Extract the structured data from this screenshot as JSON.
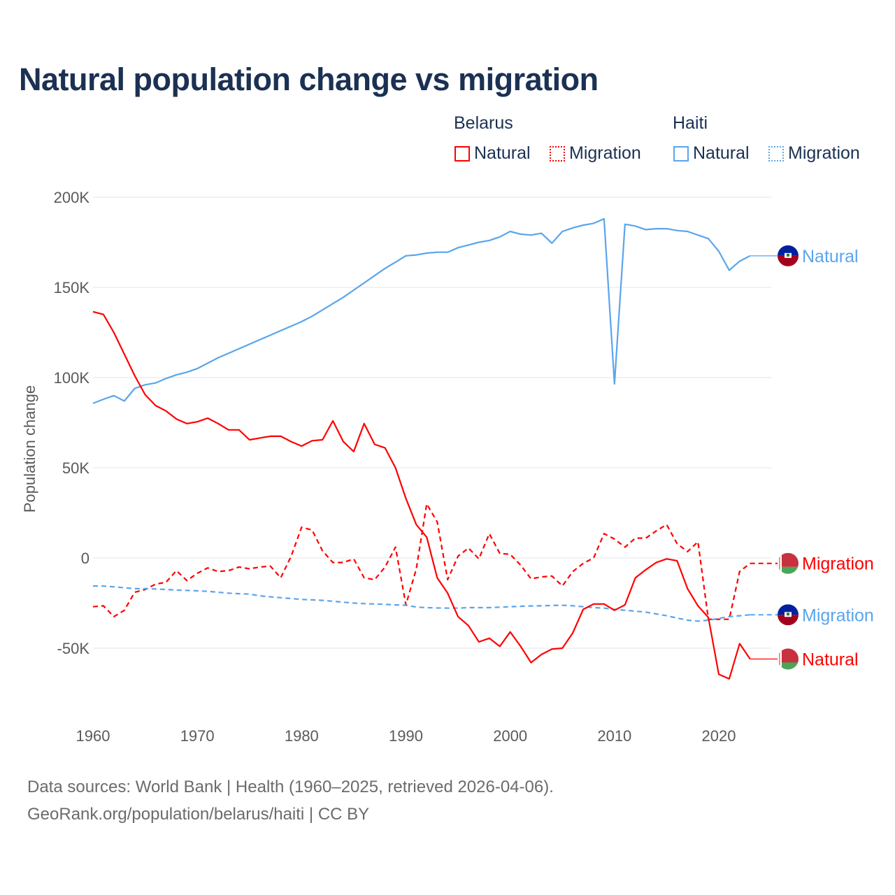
{
  "title": "Natural population change vs migration",
  "legend": {
    "groups": [
      {
        "name": "Belarus",
        "items": [
          {
            "label": "Natural",
            "style": "solid"
          },
          {
            "label": "Migration",
            "style": "dashed"
          }
        ],
        "color": "#ff0000"
      },
      {
        "name": "Haiti",
        "items": [
          {
            "label": "Natural",
            "style": "solid"
          },
          {
            "label": "Migration",
            "style": "dashed"
          }
        ],
        "color": "#5aa5ec"
      }
    ]
  },
  "footer": {
    "line1": "Data sources: World Bank | Health (1960–2025, retrieved 2026-04-06).",
    "line2": "GeoRank.org/population/belarus/haiti | CC BY"
  },
  "chart_data": {
    "type": "line",
    "title": "Natural population change vs migration",
    "xlabel": "",
    "ylabel": "Population change",
    "value_unit": "thousands",
    "xlim": [
      1960,
      2025
    ],
    "ylim": [
      -80,
      200
    ],
    "yticks": [
      -50,
      0,
      50,
      100,
      150,
      200
    ],
    "ytick_labels": [
      "-50K",
      "0",
      "50K",
      "100K",
      "150K",
      "200K"
    ],
    "xticks": [
      1960,
      1970,
      1980,
      1990,
      2000,
      2010,
      2020
    ],
    "xtick_labels": [
      "1960",
      "1970",
      "1980",
      "1990",
      "2000",
      "2010",
      "2020"
    ],
    "grid": true,
    "legend_position": "top-right",
    "x_start": 1960,
    "series": [
      {
        "name": "Haiti Natural",
        "end_label": "Natural",
        "country": "Haiti",
        "color": "#5aa5ec",
        "dash": false,
        "values": [
          85.7,
          88,
          90,
          87,
          94,
          96,
          97,
          99.5,
          101.5,
          103,
          105,
          108,
          111,
          113.5,
          116,
          118.5,
          121,
          123.5,
          126,
          128.5,
          131,
          134,
          137.5,
          141,
          144.5,
          148.5,
          152.5,
          156.5,
          160.5,
          164,
          167.5,
          168,
          169,
          169.5,
          169.5,
          172,
          173.5,
          175,
          176,
          178,
          181,
          179.5,
          179,
          180,
          174.5,
          181,
          183,
          184.5,
          185.5,
          188,
          96.5,
          185,
          184,
          182,
          182.5,
          182.5,
          181.5,
          181,
          179,
          177,
          170,
          159.5,
          164.5,
          167.5
        ]
      },
      {
        "name": "Belarus Migration",
        "end_label": "Migration",
        "country": "Belarus",
        "color": "#ff0000",
        "dash": true,
        "values": [
          -27,
          -26.5,
          -32.5,
          -29,
          -19,
          -17.5,
          -14.5,
          -13.5,
          -7,
          -12.5,
          -8.5,
          -5.5,
          -7.5,
          -7,
          -5,
          -6,
          -5,
          -4.5,
          -11,
          1,
          17,
          15.5,
          4,
          -2.5,
          -2.5,
          -0.5,
          -11,
          -12,
          -5,
          6,
          -26,
          -6,
          30,
          20,
          -12,
          1,
          5.5,
          -0.5,
          13.5,
          2.5,
          2,
          -4,
          -11.5,
          -10.5,
          -10,
          -15.5,
          -7.5,
          -3,
          0,
          13.5,
          10.5,
          6,
          11,
          11,
          15,
          18.5,
          8,
          3.5,
          9,
          -34,
          -34,
          -34,
          -7.5,
          -3
        ]
      },
      {
        "name": "Haiti Migration",
        "end_label": "Migration",
        "country": "Haiti",
        "color": "#5aa5ec",
        "dash": true,
        "values": [
          -15.5,
          -15.6,
          -16,
          -16.5,
          -17,
          -17,
          -17.2,
          -17.5,
          -17.8,
          -18,
          -18.2,
          -18.5,
          -19,
          -19.5,
          -19.8,
          -20,
          -21,
          -21.5,
          -22,
          -22.5,
          -23,
          -23.2,
          -23.5,
          -24,
          -24.5,
          -25,
          -25.3,
          -25.5,
          -25.7,
          -26,
          -26.2,
          -27.2,
          -27.5,
          -27.7,
          -27.8,
          -27.8,
          -27.5,
          -27.5,
          -27.5,
          -27.3,
          -27,
          -26.8,
          -26.6,
          -26.5,
          -26.3,
          -26.2,
          -26.5,
          -27,
          -27.5,
          -27.8,
          -28.5,
          -29,
          -29.5,
          -30,
          -31,
          -32,
          -33.3,
          -34.5,
          -35,
          -34.5,
          -33.5,
          -32.5,
          -32,
          -31.5
        ]
      },
      {
        "name": "Belarus Natural",
        "end_label": "Natural",
        "country": "Belarus",
        "color": "#ff0000",
        "dash": false,
        "values": [
          136.5,
          135,
          125,
          113,
          101,
          90.5,
          84.5,
          81.5,
          77,
          74.5,
          75.5,
          77.5,
          74.5,
          71,
          71,
          65.5,
          66.5,
          67.5,
          67.5,
          64.5,
          62,
          65,
          65.5,
          76,
          64.5,
          59,
          74.5,
          63,
          61,
          50,
          33,
          18.5,
          11.5,
          -11,
          -19.5,
          -32.5,
          -37.5,
          -46.5,
          -44.5,
          -49,
          -41,
          -49,
          -58,
          -53.5,
          -50.5,
          -50,
          -41.5,
          -28.5,
          -25.5,
          -25.5,
          -29,
          -26,
          -11,
          -6.5,
          -2.5,
          -0.5,
          -1.5,
          -17,
          -26.5,
          -33,
          -64.5,
          -67,
          -47.5,
          -56
        ]
      }
    ]
  }
}
